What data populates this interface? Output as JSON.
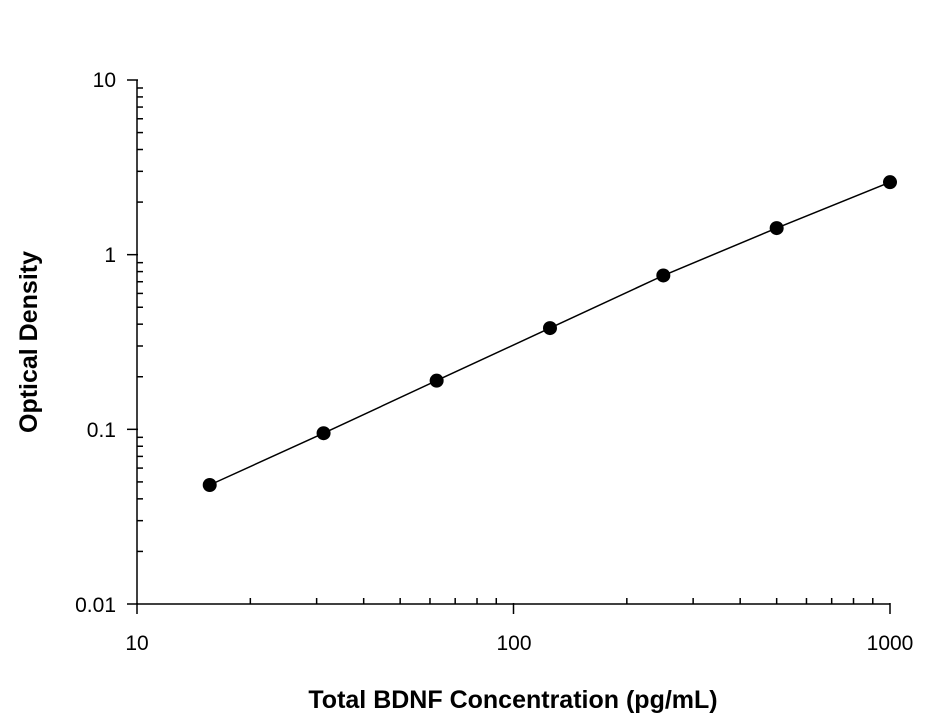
{
  "chart_data": {
    "type": "scatter",
    "title": "",
    "xlabel": "Total BDNF Concentration (pg/mL)",
    "ylabel": "Optical Density",
    "x_scale": "log",
    "y_scale": "log",
    "xlim": [
      10,
      1000
    ],
    "ylim": [
      0.01,
      10
    ],
    "x_tick_labels": [
      "10",
      "100",
      "1000"
    ],
    "y_tick_labels": [
      "10",
      "1",
      "0.1",
      "0.01"
    ],
    "grid": false,
    "legend": "none",
    "has_fit_line": true,
    "point_color": "#000000",
    "series": [
      {
        "x": [
          15.6,
          31.3,
          62.5,
          125,
          250,
          500,
          1000
        ],
        "y": [
          0.048,
          0.095,
          0.19,
          0.38,
          0.76,
          1.42,
          2.6
        ]
      }
    ]
  }
}
